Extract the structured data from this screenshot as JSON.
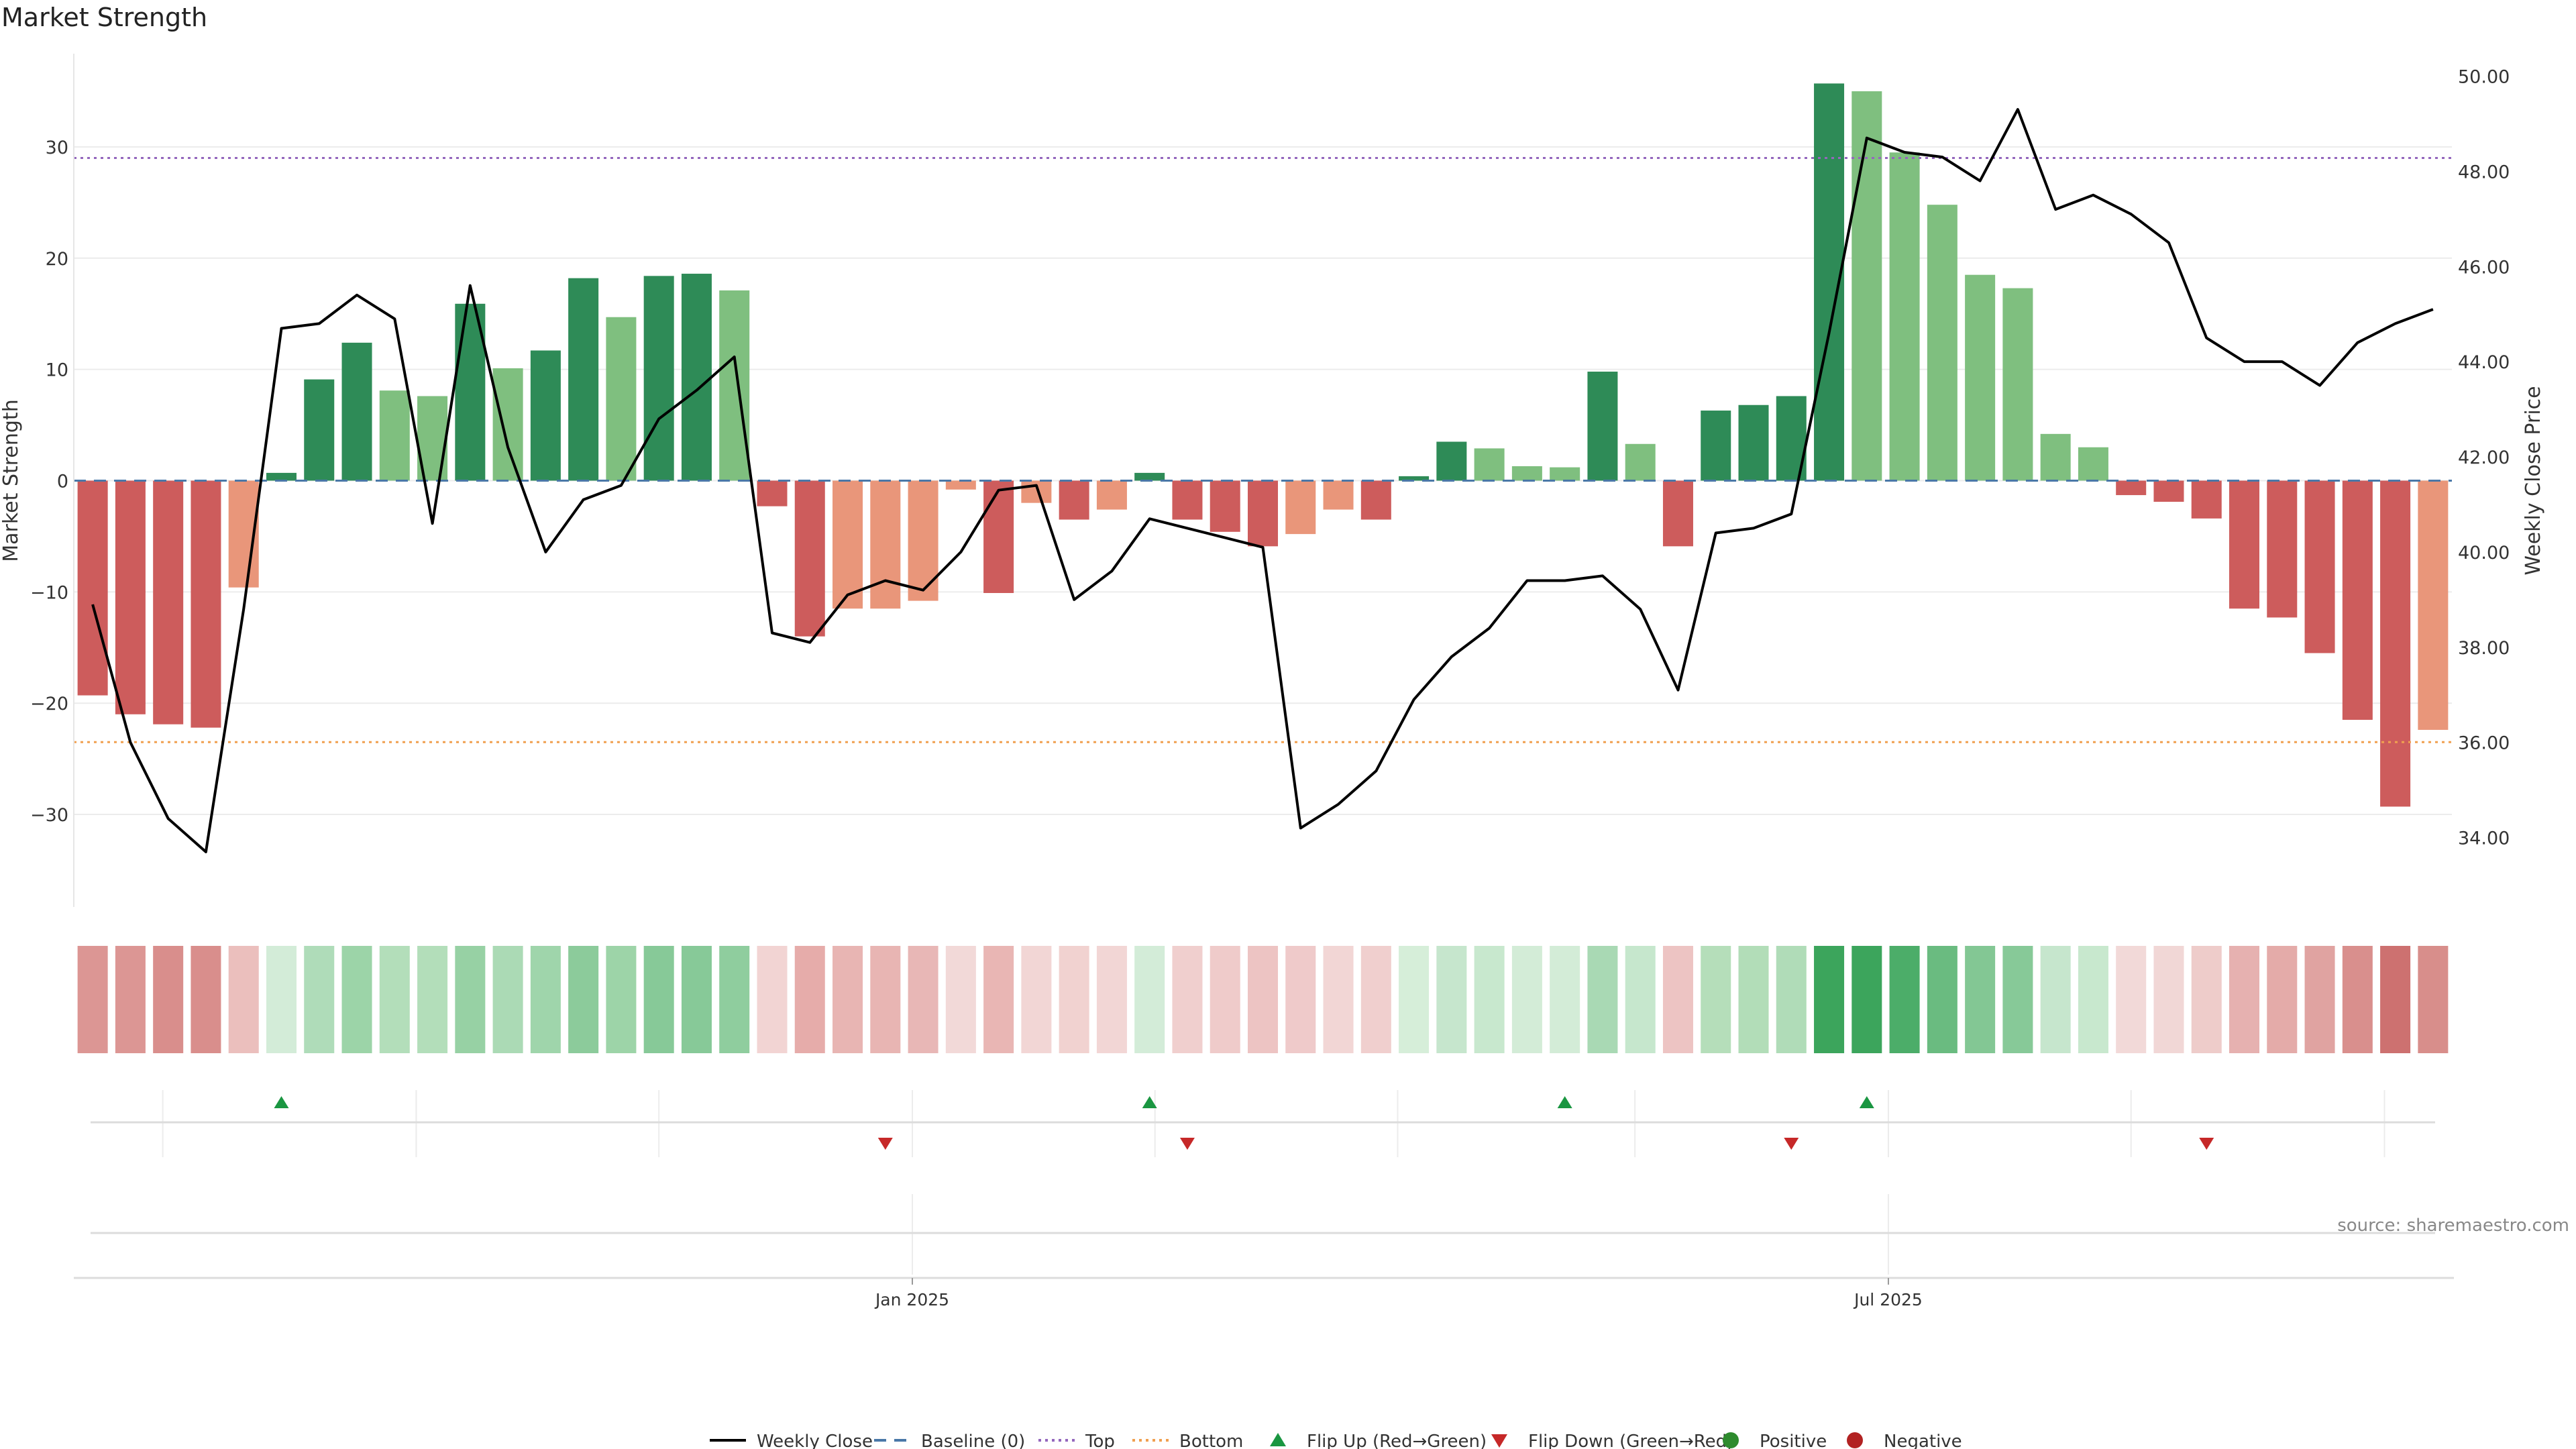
{
  "chart_data": {
    "type": "bar",
    "title": "Market Strength",
    "ylabel": "Market Strength",
    "y2label": "Weekly Close Price",
    "ylim": [
      -38.5,
      38.5
    ],
    "y2lim": [
      32.5,
      50.5
    ],
    "yticks": [
      30,
      20,
      10,
      0,
      -10,
      -20,
      -30
    ],
    "y2ticks": [
      50,
      48,
      46,
      44,
      42,
      40,
      38,
      36,
      34
    ],
    "y2tick_labels": [
      "50.00",
      "48.00",
      "46.00",
      "44.00",
      "42.00",
      "40.00",
      "38.00",
      "36.00",
      "34.00"
    ],
    "ytick_labels": [
      "30",
      "20",
      "10",
      "0",
      "−10",
      "−20",
      "−30"
    ],
    "x_tick_labels": [
      "Jan 2025",
      "Jul 2025"
    ],
    "x_tick_dates": [
      "2025-01-01",
      "2025-07-01"
    ],
    "x_range": [
      "2024-07-29",
      "2025-10-16"
    ],
    "weeks": [
      "2024-08-02",
      "2024-08-09",
      "2024-08-16",
      "2024-08-23",
      "2024-08-30",
      "2024-09-06",
      "2024-09-13",
      "2024-09-20",
      "2024-09-27",
      "2024-10-04",
      "2024-10-11",
      "2024-10-18",
      "2024-10-25",
      "2024-11-01",
      "2024-11-08",
      "2024-11-15",
      "2024-11-22",
      "2024-11-29",
      "2024-12-06",
      "2024-12-13",
      "2024-12-20",
      "2024-12-27",
      "2025-01-03",
      "2025-01-10",
      "2025-01-17",
      "2025-01-24",
      "2025-01-31",
      "2025-02-07",
      "2025-02-14",
      "2025-02-21",
      "2025-02-28",
      "2025-03-07",
      "2025-03-14",
      "2025-03-21",
      "2025-03-28",
      "2025-04-04",
      "2025-04-11",
      "2025-04-18",
      "2025-04-25",
      "2025-05-02",
      "2025-05-09",
      "2025-05-16",
      "2025-05-23",
      "2025-05-30",
      "2025-06-06",
      "2025-06-13",
      "2025-06-20",
      "2025-06-27",
      "2025-07-04",
      "2025-07-11",
      "2025-07-18",
      "2025-07-25",
      "2025-08-01",
      "2025-08-08",
      "2025-08-15",
      "2025-08-22",
      "2025-08-29",
      "2025-09-05",
      "2025-09-12",
      "2025-09-19",
      "2025-09-26",
      "2025-10-03",
      "2025-10-10"
    ],
    "strength": [
      -19.3,
      -21.0,
      -21.9,
      -22.2,
      -9.6,
      0.7,
      9.1,
      12.4,
      8.1,
      7.6,
      15.9,
      10.1,
      11.7,
      18.2,
      14.7,
      18.4,
      18.6,
      17.1,
      -2.3,
      -14.0,
      -11.5,
      -11.5,
      -10.8,
      -0.8,
      -10.1,
      -2.0,
      -3.5,
      -2.6,
      0.7,
      -3.5,
      -4.6,
      -5.9,
      -4.8,
      -2.6,
      -3.5,
      0.4,
      3.5,
      2.9,
      1.3,
      1.2,
      9.8,
      3.3,
      -5.9,
      6.3,
      6.8,
      7.6,
      35.7,
      35.0,
      29.5,
      24.8,
      18.5,
      17.3,
      4.2,
      3.0,
      -1.3,
      -1.9,
      -3.4,
      -11.5,
      -12.3,
      -15.5,
      -21.5,
      -29.3,
      -22.4
    ],
    "strength_colors": [
      "#cd5c5c",
      "#cd5c5c",
      "#cd5c5c",
      "#cd5c5c",
      "#e9967a",
      "#2e8b57",
      "#2e8b57",
      "#2e8b57",
      "#7fbf7f",
      "#7fbf7f",
      "#2e8b57",
      "#7fbf7f",
      "#2e8b57",
      "#2e8b57",
      "#7fbf7f",
      "#2e8b57",
      "#2e8b57",
      "#7fbf7f",
      "#cd5c5c",
      "#cd5c5c",
      "#e9967a",
      "#e9967a",
      "#e9967a",
      "#e9967a",
      "#cd5c5c",
      "#e9967a",
      "#cd5c5c",
      "#e9967a",
      "#2e8b57",
      "#cd5c5c",
      "#cd5c5c",
      "#cd5c5c",
      "#e9967a",
      "#e9967a",
      "#cd5c5c",
      "#2e8b57",
      "#2e8b57",
      "#7fbf7f",
      "#7fbf7f",
      "#7fbf7f",
      "#2e8b57",
      "#7fbf7f",
      "#cd5c5c",
      "#2e8b57",
      "#2e8b57",
      "#2e8b57",
      "#2e8b57",
      "#7fbf7f",
      "#7fbf7f",
      "#7fbf7f",
      "#7fbf7f",
      "#7fbf7f",
      "#7fbf7f",
      "#7fbf7f",
      "#cd5c5c",
      "#cd5c5c",
      "#cd5c5c",
      "#cd5c5c",
      "#cd5c5c",
      "#cd5c5c",
      "#cd5c5c",
      "#cd5c5c",
      "#e9967a"
    ],
    "heat_colors": [
      "#dc9694",
      "#dc9694",
      "#d98e8c",
      "#d98e8c",
      "#ebbfbd",
      "#d3ecd8",
      "#afdcb9",
      "#9cd4a8",
      "#b3deba",
      "#b3deba",
      "#97d1a4",
      "#abdab5",
      "#9fd5ab",
      "#8ccb9b",
      "#9dd4a8",
      "#87c998",
      "#87c998",
      "#8fcd9e",
      "#f2d4d3",
      "#e6acaa",
      "#e8b5b3",
      "#e8b5b3",
      "#e8b7b6",
      "#f2d9d8",
      "#e9b6b4",
      "#f2d6d5",
      "#f1d2d0",
      "#f2d6d5",
      "#d3ecd8",
      "#f0cfce",
      "#efcbca",
      "#edc4c3",
      "#efcaca",
      "#f2d6d5",
      "#f0cfce",
      "#d6eed9",
      "#c6e6cd",
      "#c8e8ce",
      "#d3ecd7",
      "#d3ecd7",
      "#a9d9b4",
      "#c6e7cd",
      "#edc4c3",
      "#b5deba",
      "#b2ddb8",
      "#b0dcb8",
      "#3ca55c",
      "#3ca55c",
      "#4cad69",
      "#6abb80",
      "#83c794",
      "#87c998",
      "#c6e6cd",
      "#c8e8ce",
      "#f2d9d8",
      "#f1d7d6",
      "#eeccca",
      "#e6b1b0",
      "#e4aba9",
      "#e0a3a1",
      "#d98f8d",
      "#cd7170",
      "#d88e8b"
    ],
    "close": [
      38.9,
      36.0,
      34.4,
      33.7,
      38.8,
      44.7,
      44.8,
      45.4,
      44.9,
      40.6,
      45.6,
      42.2,
      40.0,
      41.1,
      41.4,
      42.8,
      43.4,
      44.1,
      38.3,
      38.1,
      39.1,
      39.4,
      39.2,
      40.0,
      41.3,
      41.4,
      39.0,
      39.6,
      40.7,
      40.5,
      40.3,
      40.1,
      34.2,
      34.7,
      35.4,
      36.9,
      37.8,
      38.4,
      39.4,
      39.4,
      39.5,
      38.8,
      37.1,
      40.4,
      40.5,
      40.8,
      44.6,
      48.7,
      48.4,
      48.3,
      47.8,
      49.3,
      47.2,
      47.5,
      47.1,
      46.5,
      44.5,
      44.0,
      44.0,
      43.5,
      44.4,
      44.8,
      45.1
    ],
    "baseline": 0,
    "top": 29.0,
    "bottom": -23.5,
    "flips_up": [
      "2024-09-06",
      "2025-02-14",
      "2025-05-02",
      "2025-06-27"
    ],
    "flips_down": [
      "2024-12-27",
      "2025-02-21",
      "2025-06-13",
      "2025-08-29"
    ],
    "legend": {
      "position": "bottom",
      "items": [
        {
          "label": "Weekly Close",
          "kind": "line",
          "color": "#000000"
        },
        {
          "label": "Baseline (0)",
          "kind": "dash",
          "color": "#4a78a8"
        },
        {
          "label": "Top",
          "kind": "dot",
          "color": "#9467bd"
        },
        {
          "label": "Bottom",
          "kind": "dot",
          "color": "#f0a050"
        },
        {
          "label": "Flip Up (Red→Green)",
          "kind": "tri-up",
          "color": "#1a9641"
        },
        {
          "label": "Flip Down (Green→Red)",
          "kind": "tri-down",
          "color": "#c62828"
        },
        {
          "label": "Positive",
          "kind": "circle",
          "color": "#2e8b2e"
        },
        {
          "label": "Negative",
          "kind": "circle",
          "color": "#b22222"
        }
      ]
    },
    "colors": {
      "top_line": "#9467bd",
      "bottom_line": "#f0a050",
      "baseline": "#4a78a8",
      "close_line": "#000000",
      "grid": "#ececec",
      "flip_up": "#1a9641",
      "flip_down": "#c62828"
    },
    "source": "source: sharemaestro.com"
  }
}
